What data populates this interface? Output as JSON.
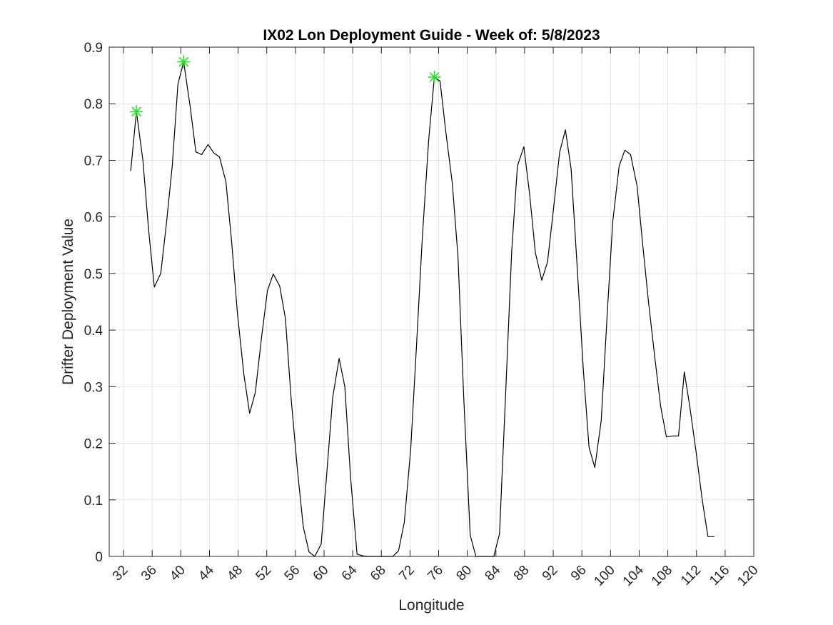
{
  "chart_data": {
    "type": "line",
    "title": "IX02 Lon Deployment Guide - Week of: 5/8/2023",
    "xlabel": "Longitude",
    "ylabel": "Drifter Deployment Value",
    "xlim": [
      30,
      120
    ],
    "ylim": [
      0,
      0.9
    ],
    "x_ticks": [
      32,
      36,
      40,
      44,
      48,
      52,
      56,
      60,
      64,
      68,
      72,
      76,
      80,
      84,
      88,
      92,
      96,
      100,
      104,
      108,
      112,
      116,
      120
    ],
    "y_ticks": [
      0,
      0.1,
      0.2,
      0.3,
      0.4,
      0.5,
      0.6,
      0.7,
      0.8,
      0.9
    ],
    "x_tick_labels": [
      "32",
      "36",
      "40",
      "44",
      "48",
      "52",
      "56",
      "60",
      "64",
      "68",
      "72",
      "76",
      "80",
      "84",
      "88",
      "92",
      "96",
      "100",
      "104",
      "108",
      "112",
      "116",
      "120"
    ],
    "y_tick_labels": [
      "0",
      "0.1",
      "0.2",
      "0.3",
      "0.4",
      "0.5",
      "0.6",
      "0.7",
      "0.8",
      "0.9"
    ],
    "grid": true,
    "series": [
      {
        "color": "#000000",
        "x": [
          33.0,
          33.8,
          34.7,
          35.5,
          36.3,
          37.2,
          38.0,
          38.8,
          39.6,
          40.4,
          41.3,
          42.1,
          42.9,
          43.8,
          44.6,
          45.4,
          46.3,
          47.1,
          47.9,
          48.8,
          49.6,
          50.4,
          51.3,
          52.1,
          52.9,
          53.8,
          54.6,
          55.4,
          56.3,
          57.1,
          57.9,
          58.7,
          59.6,
          60.4,
          61.2,
          62.1,
          62.9,
          63.7,
          64.6,
          65.4,
          66.2,
          67.1,
          67.9,
          68.7,
          69.6,
          70.4,
          71.2,
          72.1,
          72.9,
          73.7,
          74.6,
          75.4,
          76.2,
          77.0,
          77.9,
          78.7,
          79.5,
          80.4,
          81.2,
          82.0,
          82.9,
          83.7,
          84.5,
          85.4,
          86.2,
          87.0,
          87.9,
          88.7,
          89.5,
          90.4,
          91.2,
          92.0,
          92.9,
          93.7,
          94.5,
          95.3,
          96.2,
          97.0,
          97.8,
          98.7,
          99.5,
          100.3,
          101.2,
          102.0,
          102.8,
          103.7,
          104.5,
          105.3,
          106.2,
          107.0,
          107.8,
          108.7,
          109.5,
          110.3,
          111.1,
          112.0,
          112.8,
          113.6,
          114.5
        ],
        "y": [
          0.681,
          0.786,
          0.7,
          0.577,
          0.476,
          0.5,
          0.59,
          0.69,
          0.835,
          0.874,
          0.795,
          0.715,
          0.71,
          0.728,
          0.713,
          0.706,
          0.662,
          0.555,
          0.43,
          0.322,
          0.253,
          0.29,
          0.39,
          0.47,
          0.499,
          0.478,
          0.421,
          0.28,
          0.15,
          0.052,
          0.008,
          0.0,
          0.022,
          0.15,
          0.28,
          0.35,
          0.3,
          0.14,
          0.004,
          0.001,
          0.0,
          0.0,
          0.0,
          0.0,
          0.0,
          0.01,
          0.06,
          0.19,
          0.37,
          0.56,
          0.735,
          0.847,
          0.84,
          0.75,
          0.66,
          0.53,
          0.28,
          0.038,
          0.0,
          0.0,
          0.0,
          0.0,
          0.04,
          0.3,
          0.54,
          0.69,
          0.724,
          0.64,
          0.537,
          0.488,
          0.52,
          0.61,
          0.715,
          0.754,
          0.685,
          0.52,
          0.33,
          0.193,
          0.157,
          0.24,
          0.42,
          0.59,
          0.69,
          0.718,
          0.71,
          0.655,
          0.55,
          0.45,
          0.35,
          0.265,
          0.211,
          0.213,
          0.213,
          0.326,
          0.262,
          0.18,
          0.1,
          0.035,
          0.035
        ]
      }
    ],
    "markers": {
      "color": "#19e619",
      "style": "asterisk",
      "x": [
        33.8,
        40.4,
        75.4
      ],
      "y": [
        0.786,
        0.874,
        0.847
      ]
    }
  }
}
